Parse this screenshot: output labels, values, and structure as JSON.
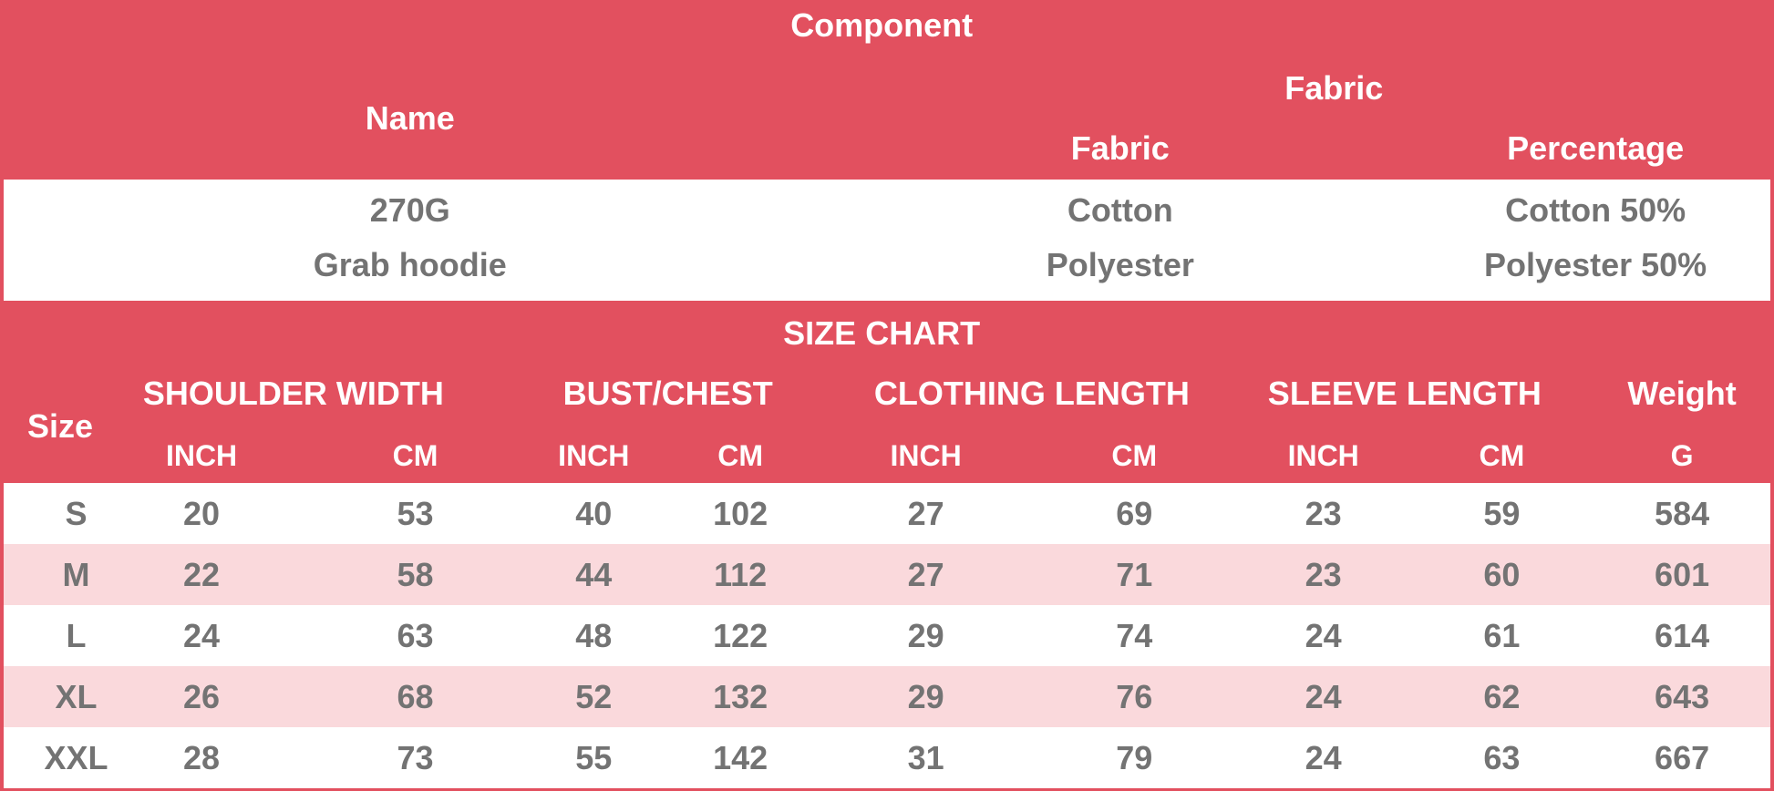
{
  "colors": {
    "header_red": "#E2505F",
    "row_pink": "#FAD9DC",
    "row_white": "#FFFFFF",
    "text_gray": "#737373",
    "text_white": "#FFFFFF"
  },
  "component_section": {
    "title": "Component",
    "name_header": "Name",
    "fabric_group_header": "Fabric",
    "fabric_header": "Fabric",
    "percentage_header": "Percentage",
    "name_lines": [
      "270G",
      "Grab hoodie"
    ],
    "fabric_lines": [
      "Cotton",
      "Polyester"
    ],
    "percentage_lines": [
      "Cotton 50%",
      "Polyester 50%"
    ]
  },
  "size_chart": {
    "title": "SIZE CHART",
    "size_header": "Size",
    "groups": [
      {
        "label": "SHOULDER WIDTH",
        "units": [
          "INCH",
          "CM"
        ]
      },
      {
        "label": "BUST/CHEST",
        "units": [
          "INCH",
          "CM"
        ]
      },
      {
        "label": "CLOTHING LENGTH",
        "units": [
          "INCH",
          "CM"
        ]
      },
      {
        "label": "SLEEVE LENGTH",
        "units": [
          "INCH",
          "CM"
        ]
      },
      {
        "label": "Weight",
        "units": [
          "G"
        ]
      }
    ],
    "rows": [
      {
        "size": "S",
        "values": [
          "20",
          "53",
          "40",
          "102",
          "27",
          "69",
          "23",
          "59",
          "584"
        ]
      },
      {
        "size": "M",
        "values": [
          "22",
          "58",
          "44",
          "112",
          "27",
          "71",
          "23",
          "60",
          "601"
        ]
      },
      {
        "size": "L",
        "values": [
          "24",
          "63",
          "48",
          "122",
          "29",
          "74",
          "24",
          "61",
          "614"
        ]
      },
      {
        "size": "XL",
        "values": [
          "26",
          "68",
          "52",
          "132",
          "29",
          "76",
          "24",
          "62",
          "643"
        ]
      },
      {
        "size": "XXL",
        "values": [
          "28",
          "73",
          "55",
          "142",
          "31",
          "79",
          "24",
          "63",
          "667"
        ]
      }
    ]
  }
}
